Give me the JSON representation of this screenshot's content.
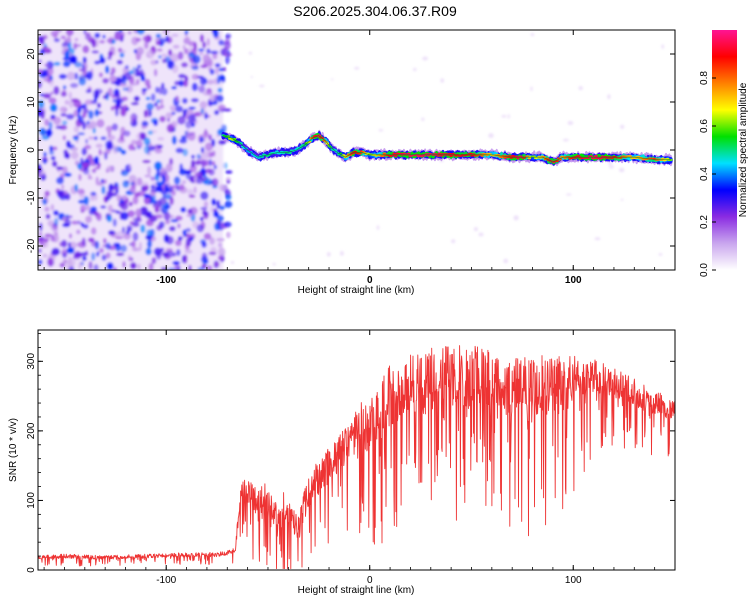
{
  "title": "S206.2025.304.06.37.R09",
  "chart_data": [
    {
      "type": "heatmap",
      "title": "",
      "xlabel": "Height of straight line (km)",
      "ylabel": "Frequency (Hz)",
      "xlim": [
        -163,
        150
      ],
      "ylim": [
        -25,
        25
      ],
      "xticks": [
        -100,
        0,
        100
      ],
      "yticks": [
        -20,
        -10,
        0,
        10,
        20
      ],
      "colorbar": {
        "label": "Normalized spectral amplitude",
        "range": [
          0.0,
          1.0
        ],
        "ticks": [
          0.0,
          0.2,
          0.4,
          0.6,
          0.8
        ],
        "colors": [
          "#ffffff",
          "#c9a6ee",
          "#8a2be2",
          "#0000ff",
          "#00e0ff",
          "#00e000",
          "#ffff00",
          "#ff8000",
          "#ff0000",
          "#ff1493"
        ]
      },
      "noise_region_x": [
        -163,
        -72
      ],
      "signal_trace": {
        "x": [
          -72,
          -68,
          -64,
          -60,
          -55,
          -50,
          -45,
          -40,
          -36,
          -32,
          -28,
          -25,
          -22,
          -19,
          -16,
          -12,
          -8,
          -4,
          0,
          10,
          20,
          30,
          40,
          50,
          60,
          70,
          75,
          80,
          85,
          90,
          95,
          100,
          110,
          120,
          130,
          140,
          148
        ],
        "y": [
          3,
          2.5,
          1.5,
          0,
          -1.5,
          -1,
          -0.5,
          -0.5,
          0,
          1,
          2.5,
          3,
          2,
          0.5,
          -0.5,
          -1.5,
          -0.5,
          -0.5,
          -1,
          -1,
          -1,
          -1,
          -1,
          -1,
          -1,
          -1.5,
          -1.5,
          -1.5,
          -1.5,
          -2.5,
          -1.5,
          -1.5,
          -1.5,
          -1.5,
          -1.5,
          -2,
          -2
        ],
        "amplitude": [
          0.5,
          0.65,
          0.5,
          0.4,
          0.45,
          0.5,
          0.45,
          0.5,
          0.45,
          0.5,
          0.85,
          0.95,
          0.8,
          0.5,
          0.45,
          0.7,
          0.9,
          0.85,
          0.6,
          0.9,
          0.95,
          0.95,
          0.9,
          0.9,
          0.7,
          0.9,
          0.95,
          0.6,
          0.75,
          0.95,
          0.75,
          0.9,
          0.95,
          0.9,
          0.7,
          0.85,
          0.6
        ]
      }
    },
    {
      "type": "line",
      "title": "",
      "xlabel": "Height of straight line (km)",
      "ylabel": "SNR (10 * v/v)",
      "xlim": [
        -163,
        150
      ],
      "ylim": [
        0,
        345
      ],
      "xticks": [
        -100,
        0,
        100
      ],
      "yticks": [
        0,
        100,
        200,
        300
      ],
      "series": [
        {
          "name": "SNR",
          "color": "#ee3333",
          "x": [
            -163,
            -150,
            -130,
            -110,
            -90,
            -75,
            -66,
            -64,
            -62,
            -58,
            -55,
            -52,
            -48,
            -45,
            -42,
            -38,
            -35,
            -30,
            -25,
            -20,
            -15,
            -10,
            -5,
            0,
            5,
            10,
            20,
            30,
            40,
            50,
            55,
            60,
            70,
            80,
            90,
            100,
            105,
            110,
            120,
            130,
            140,
            150
          ],
          "mean": [
            18,
            20,
            18,
            20,
            22,
            22,
            28,
            100,
            120,
            110,
            90,
            105,
            85,
            75,
            95,
            70,
            60,
            115,
            135,
            150,
            165,
            185,
            205,
            210,
            225,
            250,
            265,
            275,
            280,
            275,
            285,
            270,
            265,
            260,
            265,
            270,
            265,
            280,
            270,
            255,
            240,
            230
          ],
          "spread": [
            8,
            8,
            7,
            7,
            8,
            8,
            10,
            40,
            60,
            60,
            55,
            55,
            50,
            50,
            55,
            45,
            45,
            60,
            65,
            65,
            70,
            70,
            90,
            95,
            110,
            120,
            110,
            110,
            120,
            110,
            110,
            115,
            115,
            120,
            110,
            100,
            80,
            60,
            50,
            50,
            45,
            45
          ]
        }
      ]
    }
  ]
}
